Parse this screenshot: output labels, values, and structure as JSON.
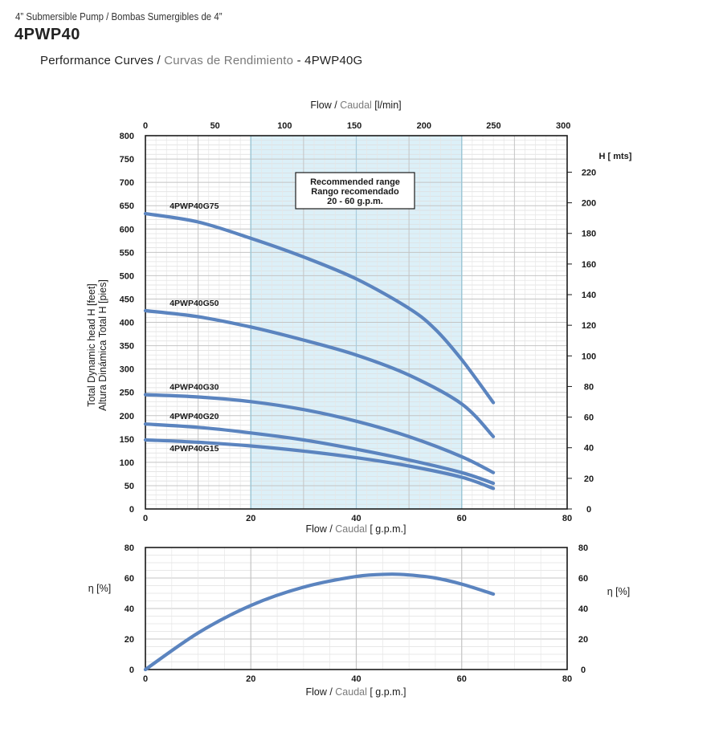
{
  "header": {
    "subtitle": "4” Submersible Pump / Bombas Sumergibles de 4”",
    "title": "4PWP40",
    "perf_prefix": "Performance Curves / ",
    "perf_es": "Curvas de Rendimiento",
    "perf_suffix": " - 4PWP40G"
  },
  "chart_data": [
    {
      "type": "line",
      "name": "head",
      "x_label_en": "Flow / ",
      "x_label_es": "Caudal",
      "x_label_unit": " [ g.p.m.]",
      "x_top_label_en": "Flow / ",
      "x_top_label_es": "Caudal",
      "x_top_label_unit": " [l/min]",
      "ylabel": "Total Dynamic head H [feet]",
      "ylabel_es": "Altura Dinámica Total H [pies]",
      "y_right_label": "H [ mts]",
      "xlim": [
        0,
        80
      ],
      "ylim": [
        0,
        800
      ],
      "x_ticks": [
        0,
        20,
        40,
        60,
        80
      ],
      "y_ticks": [
        0,
        50,
        100,
        150,
        200,
        250,
        300,
        350,
        400,
        450,
        500,
        550,
        600,
        650,
        700,
        750,
        800
      ],
      "x_top_ticks": [
        0,
        50,
        100,
        150,
        200,
        250,
        300
      ],
      "y_right_ticks": [
        0,
        20,
        40,
        60,
        80,
        100,
        120,
        140,
        160,
        180,
        200,
        220
      ],
      "grid": true,
      "recommended_range": {
        "x": [
          20,
          60
        ],
        "title": "Recommended range",
        "subtitle": "Rango recomendado",
        "range_text": "20 - 60 g.p.m."
      },
      "series": [
        {
          "name": "4PWP40G75",
          "x": [
            0,
            10,
            20,
            30,
            40,
            50,
            55,
            60,
            66
          ],
          "y": [
            633,
            615,
            580,
            540,
            493,
            430,
            385,
            320,
            228
          ]
        },
        {
          "name": "4PWP40G50",
          "x": [
            0,
            10,
            20,
            30,
            40,
            50,
            60,
            66
          ],
          "y": [
            425,
            412,
            390,
            362,
            330,
            287,
            225,
            155
          ]
        },
        {
          "name": "4PWP40G30",
          "x": [
            0,
            10,
            20,
            30,
            40,
            50,
            60,
            66
          ],
          "y": [
            245,
            240,
            230,
            213,
            188,
            155,
            112,
            78
          ]
        },
        {
          "name": "4PWP40G20",
          "x": [
            0,
            10,
            20,
            30,
            40,
            50,
            60,
            66
          ],
          "y": [
            182,
            175,
            163,
            148,
            128,
            105,
            78,
            55
          ]
        },
        {
          "name": "4PWP40G15",
          "x": [
            0,
            10,
            20,
            30,
            40,
            50,
            60,
            66
          ],
          "y": [
            148,
            143,
            135,
            124,
            110,
            92,
            68,
            44
          ]
        }
      ],
      "color": "#5b84bf"
    },
    {
      "type": "line",
      "name": "efficiency",
      "x_label_en": "Flow / ",
      "x_label_es": "Caudal",
      "x_label_unit": " [ g.p.m.]",
      "ylabel": "η [%]",
      "xlim": [
        0,
        80
      ],
      "ylim": [
        0,
        80
      ],
      "x_ticks": [
        0,
        20,
        40,
        60,
        80
      ],
      "y_ticks": [
        0,
        20,
        40,
        60,
        80
      ],
      "grid": true,
      "series": [
        {
          "name": "",
          "x": [
            0,
            10,
            20,
            30,
            40,
            46,
            50,
            55,
            60,
            66
          ],
          "y": [
            0,
            24,
            42,
            54,
            61,
            62.5,
            62,
            60,
            56,
            49.5
          ]
        }
      ],
      "color": "#5b84bf"
    }
  ]
}
